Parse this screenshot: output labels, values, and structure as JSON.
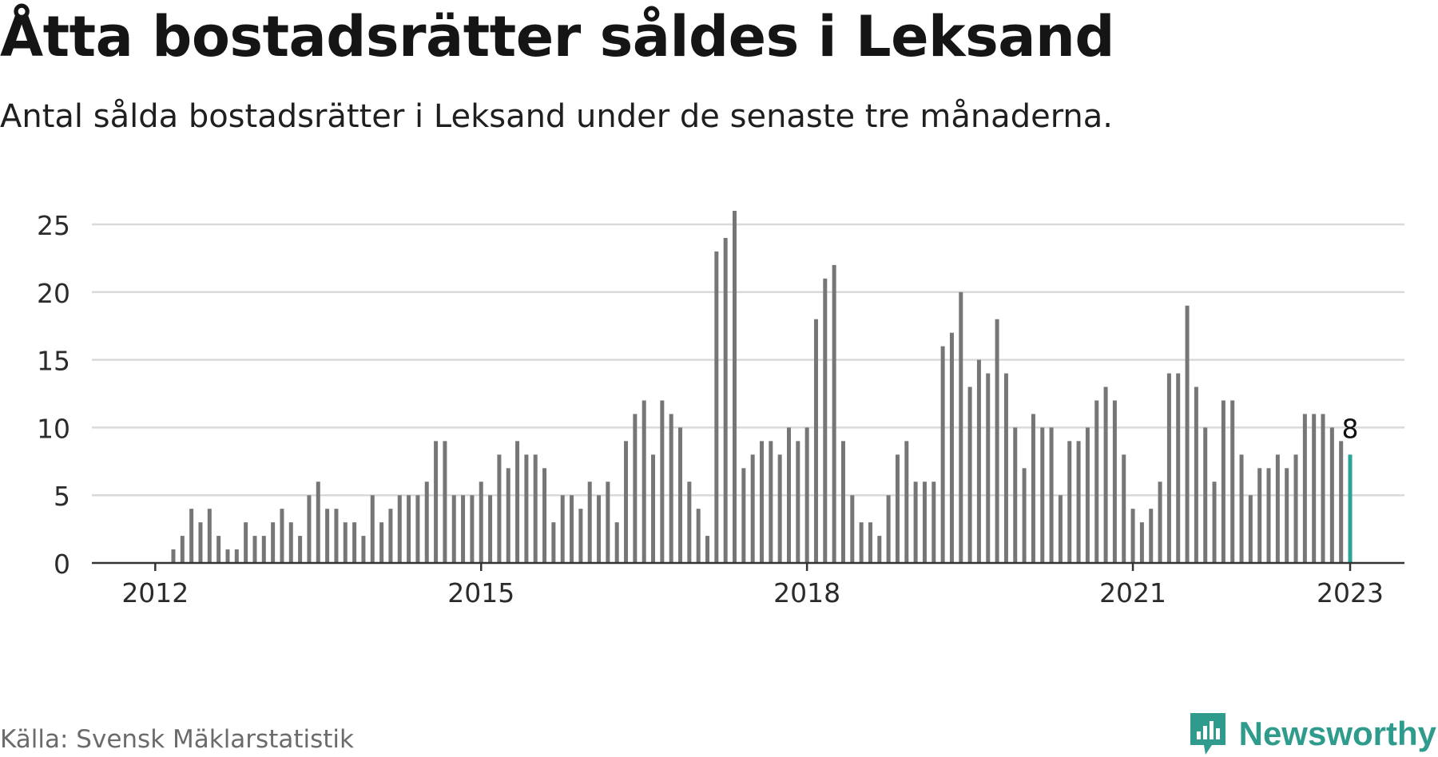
{
  "header": {
    "title": "Åtta bostadsrätter såldes i Leksand",
    "subtitle": "Antal sålda bostadsrätter i Leksand under de senaste tre månaderna."
  },
  "footer": {
    "source": "Källa: Svensk Mäklarstatistik",
    "brand": "Newsworthy"
  },
  "colors": {
    "bar": "#767676",
    "highlight": "#2aa595",
    "grid": "#d9d9d9",
    "axis": "#333333",
    "brand": "#2e9b8c"
  },
  "chart_data": {
    "type": "bar",
    "title": "Åtta bostadsrätter såldes i Leksand",
    "subtitle": "Antal sålda bostadsrätter i Leksand under de senaste tre månaderna.",
    "xlabel": "",
    "ylabel": "",
    "ylim": [
      0,
      26
    ],
    "yticks": [
      0,
      5,
      10,
      15,
      20,
      25
    ],
    "grid": true,
    "x_start": "2011-06",
    "x_end": "2023-07",
    "x_ticks": [
      {
        "label": "2012",
        "at": "2012-01"
      },
      {
        "label": "2015",
        "at": "2015-01"
      },
      {
        "label": "2018",
        "at": "2018-01"
      },
      {
        "label": "2021",
        "at": "2021-01"
      },
      {
        "label": "2023",
        "at": "2023-01"
      }
    ],
    "series": [
      {
        "start": "2012-03",
        "frequency": "monthly",
        "values": [
          1,
          2,
          4,
          3,
          4,
          2,
          1,
          1,
          3,
          2,
          2,
          3,
          4,
          3,
          2,
          5,
          6,
          4,
          4,
          3,
          3,
          2,
          5,
          3,
          4,
          5,
          5,
          5,
          6,
          9,
          9,
          5,
          5,
          5,
          6,
          5,
          8,
          7,
          9,
          8,
          8,
          7,
          3,
          5,
          5,
          4,
          6,
          5,
          6,
          3,
          9,
          11,
          12,
          8,
          12,
          11,
          10,
          6,
          4,
          2,
          23,
          24,
          26,
          7,
          8,
          9,
          9,
          8,
          10,
          9,
          10,
          18,
          21,
          22,
          9,
          5,
          3,
          3,
          2,
          5,
          8,
          9,
          6,
          6,
          6,
          16,
          17,
          20,
          13,
          15,
          14,
          18,
          14,
          10,
          7,
          11,
          10,
          10,
          5,
          9,
          9,
          10,
          12,
          13,
          12,
          8,
          4,
          3,
          4,
          6,
          14,
          14,
          19,
          13,
          10,
          6,
          12,
          12,
          8,
          5,
          7,
          7,
          8,
          7,
          8,
          11,
          11,
          11,
          10,
          9,
          8
        ]
      }
    ],
    "highlight": {
      "date": "2023-01",
      "value": 8,
      "label": "8"
    }
  }
}
